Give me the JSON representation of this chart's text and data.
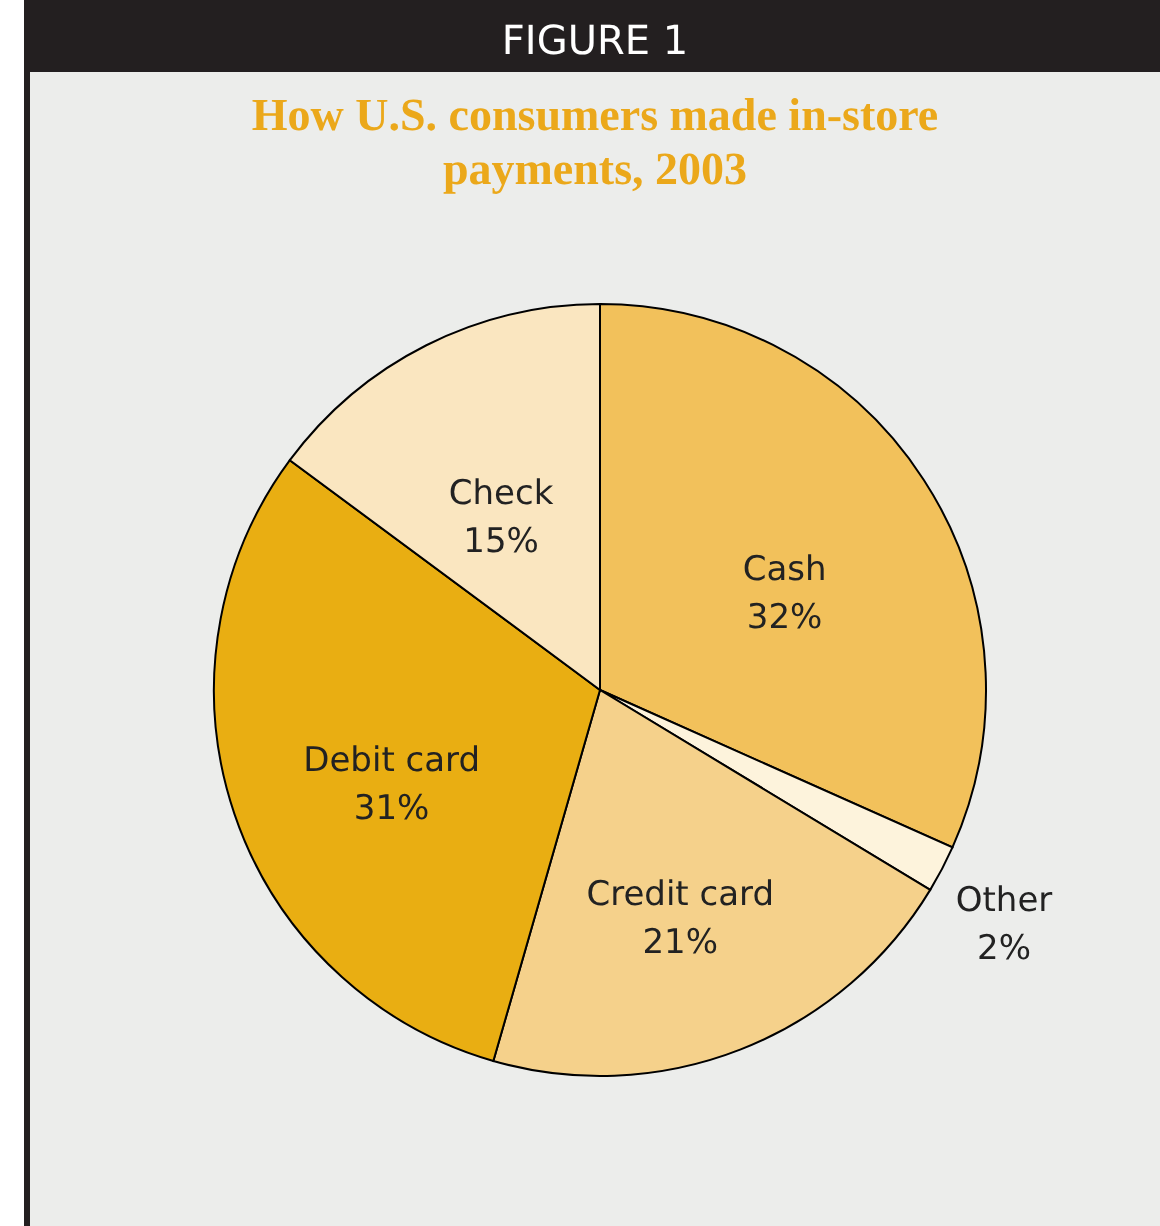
{
  "chart_data": {
    "type": "pie",
    "title": "How U.S. consumers made in-store payments, 2003",
    "annotations": [
      "FIGURE 1"
    ],
    "categories": [
      "Cash",
      "Other",
      "Credit card",
      "Debit card",
      "Check"
    ],
    "values": [
      32,
      2,
      21,
      31,
      15
    ],
    "value_labels": [
      "32%",
      "2%",
      "21%",
      "31%",
      "15%"
    ],
    "colors": [
      "#f2c15b",
      "#fdf3dc",
      "#f5d18b",
      "#e9ae12",
      "#fae6c0"
    ],
    "legend": false
  }
}
